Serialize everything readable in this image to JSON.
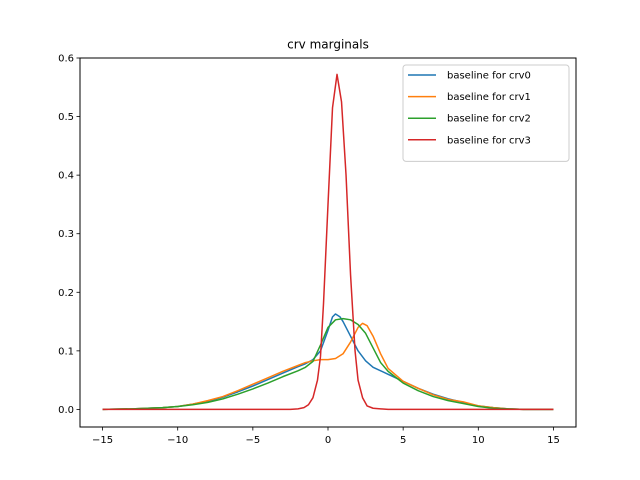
{
  "chart_data": {
    "type": "line",
    "title": "crv marginals",
    "xlabel": "",
    "ylabel": "",
    "xlim": [
      -16.5,
      16.5
    ],
    "ylim": [
      -0.03,
      0.6
    ],
    "xticks": [
      -15,
      -10,
      -5,
      0,
      5,
      10,
      15
    ],
    "yticks": [
      0.0,
      0.1,
      0.2,
      0.3,
      0.4,
      0.5,
      0.6
    ],
    "xtick_labels": [
      "−15",
      "−10",
      "−5",
      "0",
      "5",
      "10",
      "15"
    ],
    "ytick_labels": [
      "0.0",
      "0.1",
      "0.2",
      "0.3",
      "0.4",
      "0.5",
      "0.6"
    ],
    "grid": false,
    "legend_position": "top-right",
    "series": [
      {
        "name": "baseline for crv0",
        "color": "#1f77b4",
        "x": [
          -15,
          -13,
          -12,
          -11,
          -10,
          -9,
          -8,
          -7,
          -6,
          -5,
          -4,
          -3,
          -2,
          -1.5,
          -1,
          -0.5,
          0,
          0.3,
          0.5,
          0.8,
          1,
          1.5,
          2,
          2.5,
          3,
          4,
          5,
          6,
          7,
          8,
          9,
          10,
          11,
          12,
          13,
          15
        ],
        "y": [
          0.0,
          0.001,
          0.002,
          0.003,
          0.005,
          0.009,
          0.014,
          0.021,
          0.03,
          0.04,
          0.051,
          0.062,
          0.073,
          0.078,
          0.085,
          0.1,
          0.135,
          0.158,
          0.163,
          0.158,
          0.15,
          0.125,
          0.1,
          0.083,
          0.072,
          0.06,
          0.048,
          0.036,
          0.026,
          0.018,
          0.012,
          0.006,
          0.003,
          0.001,
          0.0,
          0.0
        ]
      },
      {
        "name": "baseline for crv1",
        "color": "#ff7f0e",
        "x": [
          -15,
          -13,
          -12,
          -11,
          -10,
          -9,
          -8,
          -7,
          -6,
          -5,
          -4,
          -3,
          -2,
          -1.5,
          -1,
          -0.5,
          0,
          0.5,
          1,
          1.5,
          2,
          2.3,
          2.6,
          3,
          3.5,
          4,
          5,
          6,
          7,
          8,
          9,
          10,
          11,
          12,
          13,
          15
        ],
        "y": [
          0.0,
          0.001,
          0.002,
          0.003,
          0.005,
          0.009,
          0.015,
          0.022,
          0.032,
          0.043,
          0.054,
          0.065,
          0.075,
          0.08,
          0.083,
          0.085,
          0.085,
          0.087,
          0.095,
          0.115,
          0.14,
          0.147,
          0.143,
          0.125,
          0.095,
          0.07,
          0.048,
          0.036,
          0.025,
          0.017,
          0.013,
          0.006,
          0.003,
          0.001,
          0.0,
          0.0
        ]
      },
      {
        "name": "baseline for crv2",
        "color": "#2ca02c",
        "x": [
          -15,
          -13,
          -12,
          -11,
          -10,
          -9,
          -8,
          -7,
          -6,
          -5,
          -4,
          -3,
          -2,
          -1.5,
          -1,
          -0.5,
          0,
          0.5,
          1,
          1.5,
          2,
          2.5,
          3,
          3.5,
          4,
          5,
          6,
          7,
          8,
          9,
          10,
          11,
          12,
          13,
          15
        ],
        "y": [
          0.0,
          0.001,
          0.002,
          0.003,
          0.005,
          0.008,
          0.012,
          0.018,
          0.026,
          0.035,
          0.045,
          0.056,
          0.066,
          0.072,
          0.082,
          0.11,
          0.14,
          0.153,
          0.155,
          0.153,
          0.145,
          0.13,
          0.105,
          0.08,
          0.065,
          0.045,
          0.032,
          0.022,
          0.015,
          0.01,
          0.005,
          0.002,
          0.001,
          0.0,
          0.0
        ]
      },
      {
        "name": "baseline for crv3",
        "color": "#d62728",
        "x": [
          -15,
          -3,
          -2.5,
          -2,
          -1.6,
          -1.3,
          -1,
          -0.7,
          -0.5,
          -0.3,
          0,
          0.3,
          0.6,
          0.9,
          1.2,
          1.5,
          1.8,
          2,
          2.3,
          2.6,
          3,
          4,
          5,
          15
        ],
        "y": [
          0.0,
          0.0,
          0.0,
          0.001,
          0.003,
          0.008,
          0.02,
          0.05,
          0.09,
          0.18,
          0.35,
          0.515,
          0.572,
          0.525,
          0.4,
          0.23,
          0.1,
          0.05,
          0.02,
          0.006,
          0.002,
          0.0,
          0.0,
          0.0
        ]
      }
    ]
  }
}
